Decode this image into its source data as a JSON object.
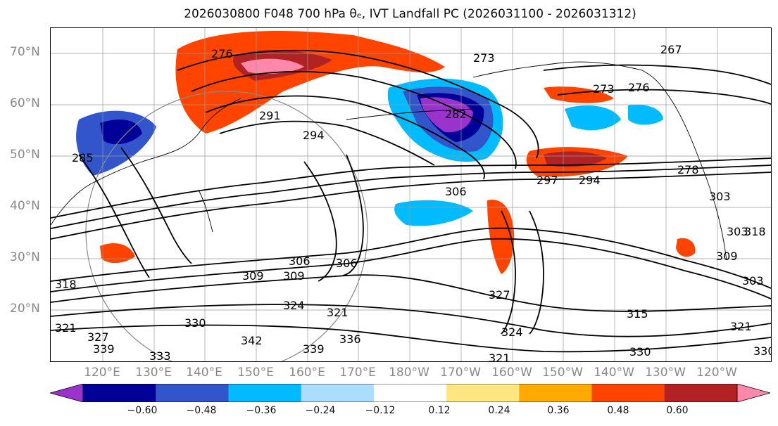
{
  "title": "2026030800 F048 700 hPa θₑ, IVT Landfall PC (2026031100 - 2026031312)",
  "lat_labels": [
    "70°N",
    "60°N",
    "50°N",
    "40°N",
    "30°N",
    "20°N"
  ],
  "lon_labels": [
    "120°E",
    "130°E",
    "140°E",
    "150°E",
    "160°E",
    "170°E",
    "180°W",
    "170°W",
    "160°W",
    "150°W",
    "140°W",
    "130°W",
    "120°W"
  ],
  "colorbar": {
    "ticks": [
      "−0.60",
      "−0.48",
      "−0.36",
      "−0.24",
      "−0.12",
      "0.12",
      "0.24",
      "0.36",
      "0.48",
      "0.60"
    ],
    "colors": [
      "#9933cc",
      "#000099",
      "#3355cc",
      "#00bbff",
      "#aaddff",
      "#ffffff",
      "#ffe680",
      "#ffaa00",
      "#ff4400",
      "#b22222",
      "#ff88aa"
    ]
  },
  "contour_labels": [
    "276",
    "273",
    "267",
    "273",
    "276",
    "291",
    "294",
    "282",
    "297",
    "294",
    "306",
    "309",
    "306",
    "306",
    "309",
    "318",
    "321",
    "324",
    "327",
    "324",
    "321",
    "330",
    "342",
    "339",
    "336",
    "330",
    "315",
    "321",
    "330",
    "303",
    "303",
    "309",
    "318",
    "303",
    "278",
    "285",
    "321",
    "327",
    "333",
    "339"
  ]
}
